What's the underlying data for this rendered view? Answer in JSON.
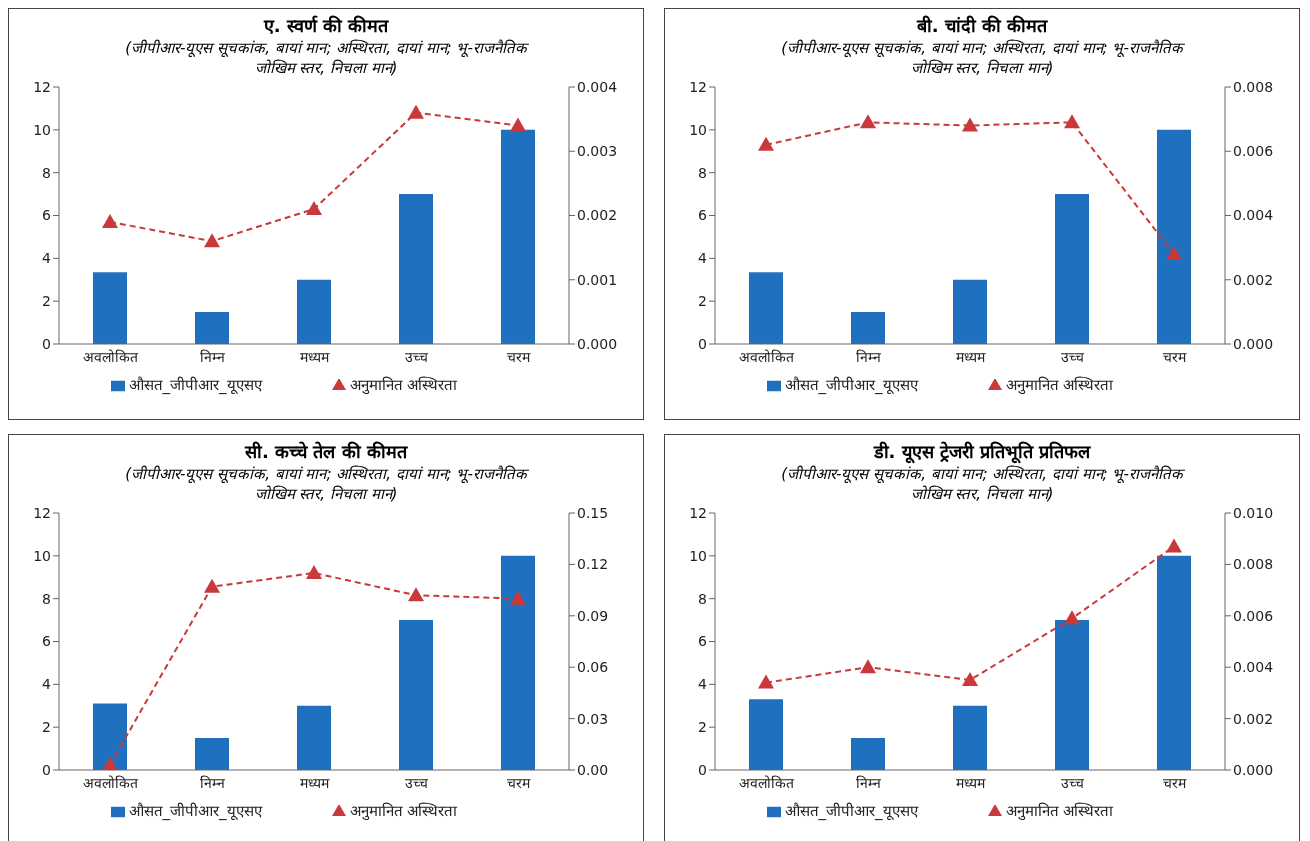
{
  "chart_data": [
    {
      "type": "bar",
      "title": "ए. स्वर्ण की कीमत",
      "subtitle": "(जीपीआर-यूएस सूचकांक, बायां मान; अस्थिरता, दायां मान; भू-राजनैतिक जोखिम स्तर, निचला मान)",
      "categories": [
        "अवलोकित",
        "निम्न",
        "मध्यम",
        "उच्च",
        "चरम"
      ],
      "ylim": [
        0,
        12
      ],
      "yticks": [
        0,
        2,
        4,
        6,
        8,
        10,
        12
      ],
      "y2lim": [
        0,
        0.004
      ],
      "y2ticks": [
        {
          "value": 0,
          "label": "0.000"
        },
        {
          "value": 0.001,
          "label": "0.001"
        },
        {
          "value": 0.002,
          "label": "0.002"
        },
        {
          "value": 0.003,
          "label": "0.003"
        },
        {
          "value": 0.004,
          "label": "0.004"
        }
      ],
      "legend": "bottom",
      "marker": "triangle",
      "line_style": "dashed",
      "series": [
        {
          "name": "औसत_जीपीआर_यूएसए",
          "color": "#1f70be",
          "values": [
            3.35,
            1.5,
            3.0,
            7.0,
            10.0
          ]
        },
        {
          "type": "line",
          "axis": "y2",
          "name": "अनुमानित अस्थिरता",
          "color": "#c9393b",
          "values": [
            0.0019,
            0.0016,
            0.0021,
            0.0036,
            0.0034
          ]
        }
      ]
    },
    {
      "type": "bar",
      "title": "बी. चांदी की कीमत",
      "subtitle": "(जीपीआर-यूएस सूचकांक, बायां मान; अस्थिरता, दायां मान; भू-राजनैतिक जोखिम स्तर, निचला मान)",
      "categories": [
        "अवलोकित",
        "निम्न",
        "मध्यम",
        "उच्च",
        "चरम"
      ],
      "ylim": [
        0,
        12
      ],
      "yticks": [
        0,
        2,
        4,
        6,
        8,
        10,
        12
      ],
      "y2lim": [
        0,
        0.008
      ],
      "y2ticks": [
        {
          "value": 0,
          "label": "0.000"
        },
        {
          "value": 0.002,
          "label": "0.002"
        },
        {
          "value": 0.004,
          "label": "0.004"
        },
        {
          "value": 0.006,
          "label": "0.006"
        },
        {
          "value": 0.008,
          "label": "0.008"
        }
      ],
      "legend": "bottom",
      "marker": "triangle",
      "line_style": "dashed",
      "series": [
        {
          "name": "औसत_जीपीआर_यूएसए",
          "color": "#1f70be",
          "values": [
            3.35,
            1.5,
            3.0,
            7.0,
            10.0
          ]
        },
        {
          "type": "line",
          "axis": "y2",
          "name": "अनुमानित अस्थिरता",
          "color": "#c9393b",
          "values": [
            0.0062,
            0.0069,
            0.0068,
            0.0069,
            0.0028
          ]
        }
      ]
    },
    {
      "type": "bar",
      "title": "सी. कच्चे तेल की कीमत",
      "subtitle": "(जीपीआर-यूएस सूचकांक, बायां मान; अस्थिरता, दायां मान; भू-राजनैतिक जोखिम स्तर, निचला मान)",
      "categories": [
        "अवलोकित",
        "निम्न",
        "मध्यम",
        "उच्च",
        "चरम"
      ],
      "ylim": [
        0,
        12
      ],
      "yticks": [
        0,
        2,
        4,
        6,
        8,
        10,
        12
      ],
      "y2lim": [
        0,
        0.15
      ],
      "y2ticks": [
        {
          "value": 0,
          "label": "0.00"
        },
        {
          "value": 0.03,
          "label": "0.03"
        },
        {
          "value": 0.06,
          "label": "0.06"
        },
        {
          "value": 0.09,
          "label": "0.09"
        },
        {
          "value": 0.12,
          "label": "0.12"
        },
        {
          "value": 0.15,
          "label": "0.15"
        }
      ],
      "legend": "bottom",
      "marker": "triangle",
      "line_style": "dashed",
      "series": [
        {
          "name": "औसत_जीपीआर_यूएसए",
          "color": "#1f70be",
          "values": [
            3.1,
            1.5,
            3.0,
            7.0,
            10.0
          ]
        },
        {
          "type": "line",
          "axis": "y2",
          "name": "अनुमानित अस्थिरता",
          "color": "#c9393b",
          "values": [
            0.003,
            0.107,
            0.115,
            0.102,
            0.1
          ]
        }
      ]
    },
    {
      "type": "bar",
      "title": "डी. यूएस ट्रेजरी प्रतिभूति प्रतिफल",
      "subtitle": "(जीपीआर-यूएस सूचकांक, बायां मान; अस्थिरता, दायां मान; भू-राजनैतिक जोखिम स्तर, निचला मान)",
      "categories": [
        "अवलोकित",
        "निम्न",
        "मध्यम",
        "उच्च",
        "चरम"
      ],
      "ylim": [
        0,
        12
      ],
      "yticks": [
        0,
        2,
        4,
        6,
        8,
        10,
        12
      ],
      "y2lim": [
        0,
        0.01
      ],
      "y2ticks": [
        {
          "value": 0,
          "label": "0.000"
        },
        {
          "value": 0.002,
          "label": "0.002"
        },
        {
          "value": 0.004,
          "label": "0.004"
        },
        {
          "value": 0.006,
          "label": "0.006"
        },
        {
          "value": 0.008,
          "label": "0.008"
        },
        {
          "value": 0.01,
          "label": "0.010"
        }
      ],
      "legend": "bottom",
      "marker": "triangle",
      "line_style": "dashed",
      "series": [
        {
          "name": "औसत_जीपीआर_यूएसए",
          "color": "#1f70be",
          "values": [
            3.3,
            1.5,
            3.0,
            7.0,
            10.0
          ]
        },
        {
          "type": "line",
          "axis": "y2",
          "name": "अनुमानित अस्थिरता",
          "color": "#c9393b",
          "values": [
            0.0034,
            0.004,
            0.0035,
            0.0059,
            0.0087
          ]
        }
      ]
    }
  ]
}
